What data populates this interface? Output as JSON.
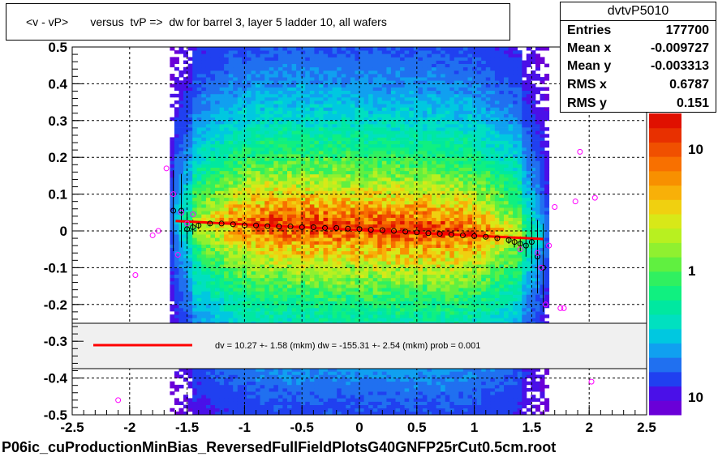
{
  "title": "<v - vP>       versus  tvP =>  dw for barrel 3, layer 5 ladder 10, all wafers",
  "footer": "P06ic_cuProductionMinBias_ReversedFullFieldPlotsG40GNFP25rCut0.5cm.root",
  "stats": {
    "name": "dvtvP5010",
    "rows": [
      {
        "key": "Entries",
        "value": "177700"
      },
      {
        "key": "Mean x",
        "value": "-0.009727"
      },
      {
        "key": "Mean y",
        "value": "-0.003313"
      },
      {
        "key": "RMS x",
        "value": "0.6787"
      },
      {
        "key": "RMS y",
        "value": "0.151"
      }
    ]
  },
  "legend": {
    "fit_text": "dv =   10.27 +-  1.58 (mkm) dw = -155.31 +-  2.54 (mkm) prob = 0.001",
    "line_color": "#ff0000"
  },
  "colors": {
    "fit_line": "#ff0000",
    "profile_markers": "#000000",
    "outlier_markers": "#ff00ff",
    "grid": "#000000"
  },
  "chart_data": {
    "type": "heatmap",
    "title": "<v - vP>       versus  tvP =>  dw for barrel 3, layer 5 ladder 10, all wafers",
    "xlabel": "",
    "ylabel": "",
    "xlim": [
      -2.5,
      2.5
    ],
    "ylim": [
      -0.5,
      0.5
    ],
    "x_ticks": [
      "-2.5",
      "-2",
      "-1.5",
      "-1",
      "-0.5",
      "0",
      "0.5",
      "1",
      "1.5",
      "2",
      "2.5"
    ],
    "y_ticks": [
      "-0.5",
      "-0.4",
      "-0.3",
      "-0.2",
      "-0.1",
      "0",
      "0.1",
      "0.2",
      "0.3",
      "0.4",
      "0.5"
    ],
    "z_scale": "log",
    "z_ticks": [
      "10",
      "1",
      "10"
    ],
    "grid": true,
    "fit_line": {
      "x": [
        -1.6,
        1.6
      ],
      "y": [
        0.027,
        -0.022
      ]
    },
    "profile": {
      "x": [
        -1.62,
        -1.55,
        -1.5,
        -1.45,
        -1.4,
        -1.3,
        -1.2,
        -1.1,
        -1.0,
        -0.9,
        -0.8,
        -0.7,
        -0.6,
        -0.5,
        -0.4,
        -0.3,
        -0.2,
        -0.1,
        0.0,
        0.1,
        0.2,
        0.3,
        0.4,
        0.5,
        0.6,
        0.7,
        0.8,
        0.9,
        1.0,
        1.1,
        1.2,
        1.3,
        1.35,
        1.4,
        1.45,
        1.5,
        1.55,
        1.6
      ],
      "y": [
        0.055,
        0.055,
        0.005,
        0.01,
        0.015,
        0.02,
        0.02,
        0.018,
        0.015,
        0.015,
        0.013,
        0.012,
        0.012,
        0.01,
        0.01,
        0.008,
        0.008,
        0.006,
        0.005,
        0.003,
        0.002,
        0.0,
        -0.002,
        -0.004,
        -0.006,
        -0.008,
        -0.01,
        -0.012,
        -0.014,
        -0.016,
        -0.02,
        -0.025,
        -0.03,
        -0.035,
        -0.04,
        -0.03,
        -0.07,
        -0.1
      ],
      "yerr": [
        0.11,
        0.1,
        0.04,
        0.02,
        0.01,
        0.005,
        0.003,
        0.002,
        0.002,
        0.002,
        0.002,
        0.002,
        0.002,
        0.002,
        0.002,
        0.002,
        0.002,
        0.002,
        0.002,
        0.002,
        0.002,
        0.002,
        0.002,
        0.002,
        0.002,
        0.002,
        0.002,
        0.002,
        0.003,
        0.004,
        0.006,
        0.01,
        0.015,
        0.02,
        0.03,
        0.06,
        0.1,
        0.12
      ]
    },
    "outliers": {
      "x": [
        -2.1,
        -1.95,
        -1.8,
        -1.75,
        -1.68,
        -1.62,
        -1.58,
        -1.55,
        -1.5,
        -1.45,
        1.4,
        1.55,
        1.58,
        1.62,
        1.65,
        1.7,
        1.75,
        1.78,
        1.88,
        1.92,
        2.02,
        2.05
      ],
      "y": [
        -0.46,
        -0.12,
        -0.012,
        0.0,
        0.17,
        0.1,
        -0.065,
        0.05,
        0.02,
        0.045,
        -0.05,
        -0.06,
        -0.1,
        -0.2,
        -0.04,
        0.065,
        -0.21,
        -0.21,
        0.08,
        0.215,
        -0.41,
        0.09
      ]
    }
  }
}
